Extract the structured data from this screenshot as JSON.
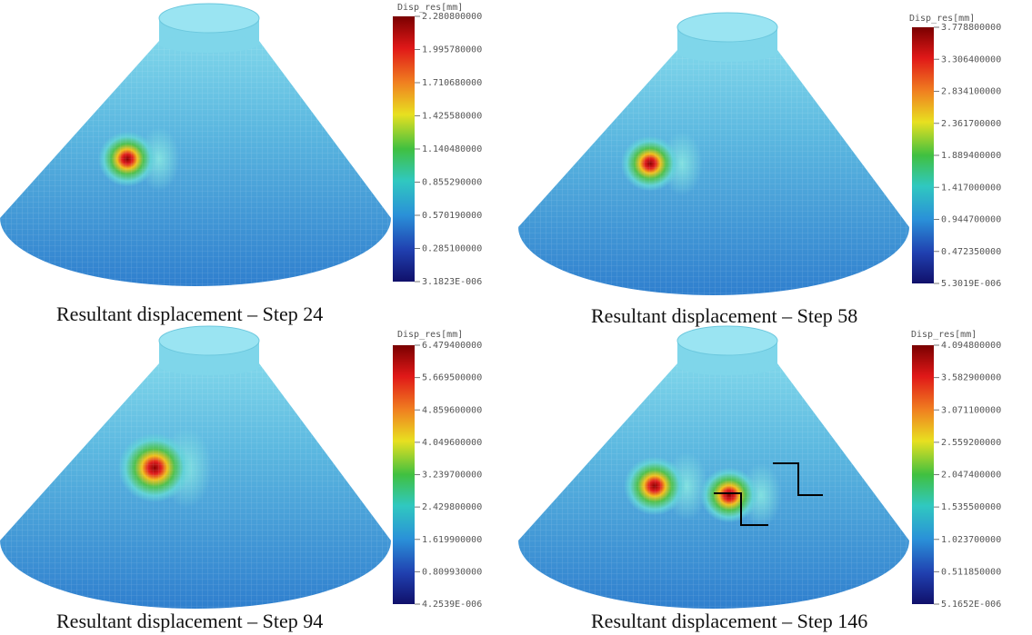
{
  "panels": [
    {
      "caption": "Resultant displacement – Step 24",
      "legend": {
        "title": "Disp_res[mm]",
        "labels": [
          "2.280800000",
          "1.995780000",
          "1.710680000",
          "1.425580000",
          "1.140480000",
          "0.855290000",
          "0.570190000",
          "0.285100000",
          "3.1823E-006"
        ]
      }
    },
    {
      "caption": "Resultant displacement – Step 58",
      "legend": {
        "title": "Disp_res[mm]",
        "labels": [
          "3.778800000",
          "3.306400000",
          "2.834100000",
          "2.361700000",
          "1.889400000",
          "1.417000000",
          "0.944700000",
          "0.472350000",
          "5.3019E-006"
        ]
      }
    },
    {
      "caption": "Resultant displacement – Step 94",
      "legend": {
        "title": "Disp_res[mm]",
        "labels": [
          "6.479400000",
          "5.669500000",
          "4.859600000",
          "4.049600000",
          "3.239700000",
          "2.429800000",
          "1.619900000",
          "0.809930000",
          "4.2539E-006"
        ]
      }
    },
    {
      "caption": "Resultant displacement – Step 146",
      "legend": {
        "title": "Disp_res[mm]",
        "labels": [
          "4.094800000",
          "3.582900000",
          "3.071100000",
          "2.559200000",
          "2.047400000",
          "1.535500000",
          "1.023700000",
          "0.511850000",
          "5.1652E-006"
        ]
      }
    }
  ]
}
